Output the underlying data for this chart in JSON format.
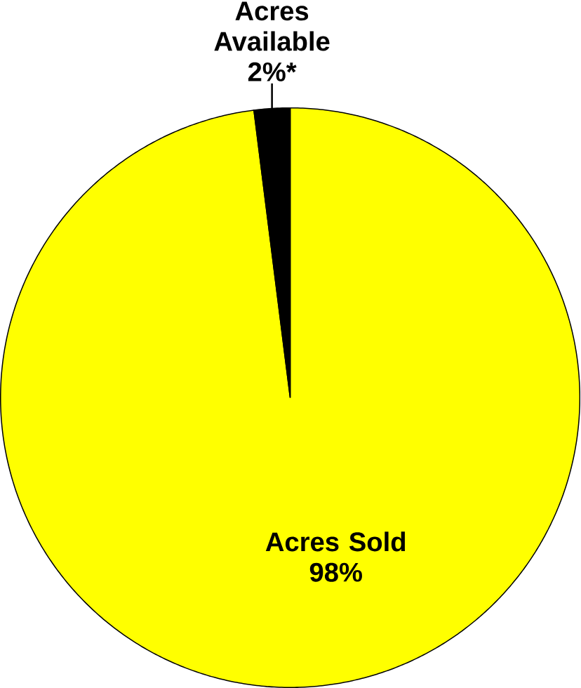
{
  "chart_data": {
    "type": "pie",
    "categories": [
      "Acres Sold",
      "Acres Available"
    ],
    "values": [
      98,
      2
    ],
    "colors": [
      "#ffff00",
      "#000000"
    ],
    "value_labels": [
      "98%",
      "2%*"
    ]
  }
}
